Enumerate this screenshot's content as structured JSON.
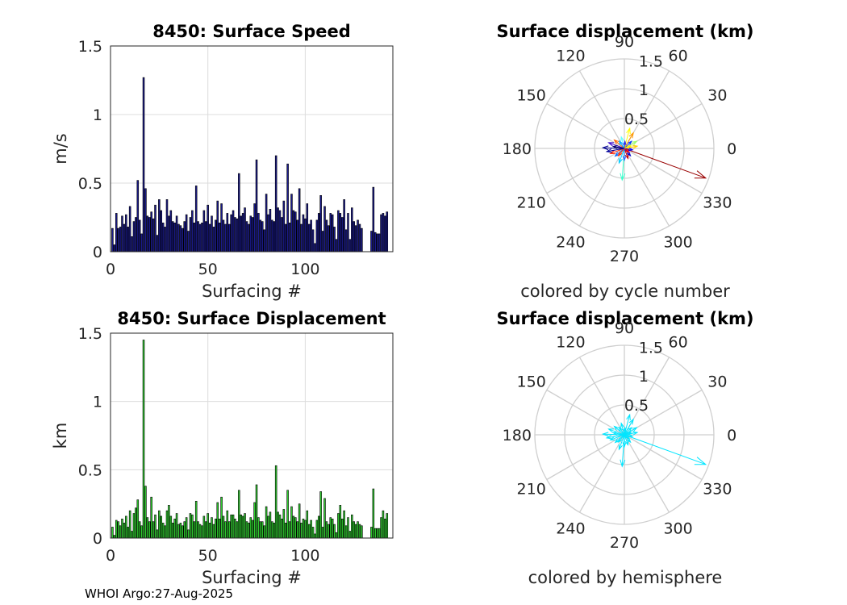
{
  "chart_data": [
    {
      "type": "bar",
      "title": "8450: Surface Speed",
      "xlabel": "Surfacing #",
      "ylabel": "m/s",
      "xlim": [
        0,
        145
      ],
      "ylim": [
        0,
        1.5
      ],
      "xticks": [
        0,
        50,
        100
      ],
      "yticks": [
        0,
        0.5,
        1,
        1.5
      ],
      "yticklabels": [
        "0",
        "0.5",
        "1",
        "1.5"
      ],
      "grid": true,
      "bar_color": "#1a1a8c",
      "values": [
        0.17,
        0.05,
        0.28,
        0.17,
        0.18,
        0.26,
        0.2,
        0.27,
        0.18,
        0.33,
        0.11,
        0.22,
        0.25,
        0.52,
        0.23,
        0.13,
        1.27,
        0.46,
        0.26,
        0.25,
        0.29,
        0.24,
        0.34,
        0.12,
        0.38,
        0.3,
        0.21,
        0.18,
        0.38,
        0.26,
        0.3,
        0.22,
        0.21,
        0.26,
        0.2,
        0.19,
        0.17,
        0.22,
        0.27,
        0.15,
        0.25,
        0.3,
        0.21,
        0.48,
        0.22,
        0.2,
        0.21,
        0.3,
        0.22,
        0.34,
        0.2,
        0.26,
        0.18,
        0.23,
        0.37,
        0.21,
        0.35,
        0.23,
        0.2,
        0.28,
        0.2,
        0.27,
        0.3,
        0.25,
        0.24,
        0.57,
        0.26,
        0.28,
        0.32,
        0.22,
        0.2,
        0.26,
        0.25,
        0.35,
        0.67,
        0.28,
        0.23,
        0.22,
        0.16,
        0.42,
        0.27,
        0.31,
        0.23,
        0.22,
        0.7,
        0.32,
        0.3,
        0.25,
        0.37,
        0.2,
        0.64,
        0.21,
        0.42,
        0.3,
        0.29,
        0.23,
        0.46,
        0.2,
        0.27,
        0.24,
        0.35,
        0.2,
        0.23,
        0.16,
        0.06,
        0.23,
        0.28,
        0.41,
        0.15,
        0.33,
        0.23,
        0.19,
        0.28,
        0.27,
        0.18,
        0.09,
        0.3,
        0.28,
        0.25,
        0.38,
        0.16,
        0.28,
        0.09,
        0.32,
        0.22,
        0.19,
        0.23,
        0.2,
        0.17,
        0.0,
        0.0,
        0.0,
        0.0,
        0.15,
        0.47,
        0.14,
        0.13,
        0.13,
        0.27,
        0.28,
        0.26,
        0.29
      ]
    },
    {
      "type": "bar",
      "title": "8450: Surface Displacement",
      "xlabel": "Surfacing #",
      "ylabel": "km",
      "xlim": [
        0,
        145
      ],
      "ylim": [
        0,
        1.5
      ],
      "xticks": [
        0,
        50,
        100
      ],
      "yticks": [
        0,
        0.5,
        1,
        1.5
      ],
      "yticklabels": [
        "0",
        "0.5",
        "1",
        "1.5"
      ],
      "grid": true,
      "bar_color": "#2ecc2e",
      "values": [
        0.08,
        0.02,
        0.13,
        0.12,
        0.09,
        0.14,
        0.11,
        0.16,
        0.08,
        0.2,
        0.05,
        0.18,
        0.22,
        0.28,
        0.12,
        0.09,
        1.45,
        0.38,
        0.15,
        0.12,
        0.3,
        0.12,
        0.17,
        0.06,
        0.2,
        0.16,
        0.11,
        0.09,
        0.2,
        0.24,
        0.16,
        0.11,
        0.14,
        0.18,
        0.1,
        0.11,
        0.09,
        0.12,
        0.15,
        0.06,
        0.18,
        0.17,
        0.12,
        0.27,
        0.12,
        0.1,
        0.09,
        0.16,
        0.12,
        0.18,
        0.11,
        0.15,
        0.1,
        0.14,
        0.26,
        0.14,
        0.3,
        0.16,
        0.12,
        0.2,
        0.12,
        0.17,
        0.17,
        0.14,
        0.12,
        0.35,
        0.17,
        0.16,
        0.18,
        0.12,
        0.11,
        0.15,
        0.13,
        0.26,
        0.39,
        0.15,
        0.12,
        0.12,
        0.09,
        0.23,
        0.16,
        0.19,
        0.12,
        0.11,
        0.53,
        0.19,
        0.17,
        0.14,
        0.21,
        0.11,
        0.35,
        0.12,
        0.23,
        0.16,
        0.15,
        0.12,
        0.25,
        0.11,
        0.14,
        0.13,
        0.2,
        0.1,
        0.13,
        0.08,
        0.03,
        0.13,
        0.16,
        0.34,
        0.08,
        0.29,
        0.12,
        0.1,
        0.15,
        0.14,
        0.1,
        0.04,
        0.18,
        0.24,
        0.14,
        0.2,
        0.09,
        0.15,
        0.05,
        0.17,
        0.12,
        0.1,
        0.12,
        0.1,
        0.09,
        0.0,
        0.0,
        0.0,
        0.0,
        0.08,
        0.36,
        0.07,
        0.07,
        0.07,
        0.15,
        0.2,
        0.14,
        0.18
      ]
    },
    {
      "type": "polar",
      "title": "Surface displacement (km)",
      "caption": "colored by cycle number",
      "rlim": [
        0,
        1.5
      ],
      "rticks": [
        0.5,
        1,
        1.5
      ],
      "rticklabels": [
        "0.5",
        "1",
        "1.5"
      ],
      "angle_ticks": [
        0,
        30,
        60,
        90,
        120,
        150,
        180,
        210,
        240,
        270,
        300,
        330
      ],
      "angle_ticklabels": [
        "0",
        "30",
        "60",
        "90",
        "120",
        "150",
        "180",
        "210",
        "240",
        "270",
        "300",
        "330"
      ],
      "vectors": [
        {
          "angle": 340,
          "r": 1.45,
          "color": "#990000"
        },
        {
          "angle": 178,
          "r": 0.36,
          "color": "#00008f"
        },
        {
          "angle": 266,
          "r": 0.53,
          "color": "#33ffcc"
        },
        {
          "angle": 45,
          "r": 0.17,
          "color": "#0033ff"
        },
        {
          "angle": 60,
          "r": 0.3,
          "color": "#ff9900"
        },
        {
          "angle": 75,
          "r": 0.35,
          "color": "#ffff00"
        },
        {
          "angle": 30,
          "r": 0.24,
          "color": "#99ff66"
        },
        {
          "angle": 200,
          "r": 0.25,
          "color": "#ff2200"
        },
        {
          "angle": 220,
          "r": 0.2,
          "color": "#0066ff"
        },
        {
          "angle": 250,
          "r": 0.26,
          "color": "#00ccff"
        },
        {
          "angle": 290,
          "r": 0.18,
          "color": "#cc0000"
        },
        {
          "angle": 310,
          "r": 0.16,
          "color": "#0000cc"
        },
        {
          "angle": 140,
          "r": 0.22,
          "color": "#ff6600"
        },
        {
          "angle": 160,
          "r": 0.28,
          "color": "#3300cc"
        },
        {
          "angle": 105,
          "r": 0.2,
          "color": "#66ffff"
        },
        {
          "angle": 10,
          "r": 0.22,
          "color": "#ffcc00"
        },
        {
          "angle": 350,
          "r": 0.14,
          "color": "#0000ff"
        },
        {
          "angle": 190,
          "r": 0.3,
          "color": "#000099"
        },
        {
          "angle": 230,
          "r": 0.16,
          "color": "#ff3300"
        },
        {
          "angle": 125,
          "r": 0.15,
          "color": "#00aaff"
        },
        {
          "angle": 85,
          "r": 0.12,
          "color": "#2222ff"
        },
        {
          "angle": 20,
          "r": 0.12,
          "color": "#ffee00"
        },
        {
          "angle": 270,
          "r": 0.2,
          "color": "#3366ff"
        },
        {
          "angle": 320,
          "r": 0.1,
          "color": "#ff0000"
        },
        {
          "angle": 170,
          "r": 0.19,
          "color": "#000066"
        }
      ]
    },
    {
      "type": "polar",
      "title": "Surface displacement (km)",
      "caption": "colored by hemisphere",
      "rlim": [
        0,
        1.5
      ],
      "rticks": [
        0.5,
        1,
        1.5
      ],
      "rticklabels": [
        "0.5",
        "1",
        "1.5"
      ],
      "angle_ticks": [
        0,
        30,
        60,
        90,
        120,
        150,
        180,
        210,
        240,
        270,
        300,
        330
      ],
      "angle_ticklabels": [
        "0",
        "30",
        "60",
        "90",
        "120",
        "150",
        "180",
        "210",
        "240",
        "270",
        "300",
        "330"
      ],
      "series_color": "#00e5ff",
      "vectors": [
        {
          "angle": 340,
          "r": 1.45
        },
        {
          "angle": 178,
          "r": 0.36
        },
        {
          "angle": 266,
          "r": 0.53
        },
        {
          "angle": 45,
          "r": 0.17
        },
        {
          "angle": 60,
          "r": 0.3
        },
        {
          "angle": 75,
          "r": 0.35
        },
        {
          "angle": 30,
          "r": 0.24
        },
        {
          "angle": 200,
          "r": 0.25
        },
        {
          "angle": 220,
          "r": 0.2
        },
        {
          "angle": 250,
          "r": 0.26
        },
        {
          "angle": 290,
          "r": 0.18
        },
        {
          "angle": 310,
          "r": 0.16
        },
        {
          "angle": 140,
          "r": 0.22
        },
        {
          "angle": 160,
          "r": 0.28
        },
        {
          "angle": 105,
          "r": 0.2
        },
        {
          "angle": 10,
          "r": 0.22
        },
        {
          "angle": 350,
          "r": 0.14
        },
        {
          "angle": 190,
          "r": 0.3
        },
        {
          "angle": 230,
          "r": 0.16
        },
        {
          "angle": 125,
          "r": 0.15
        },
        {
          "angle": 85,
          "r": 0.12
        },
        {
          "angle": 20,
          "r": 0.12
        },
        {
          "angle": 270,
          "r": 0.2
        },
        {
          "angle": 320,
          "r": 0.1
        },
        {
          "angle": 170,
          "r": 0.19
        }
      ]
    }
  ],
  "footer": "WHOI Argo:27-Aug-2025"
}
